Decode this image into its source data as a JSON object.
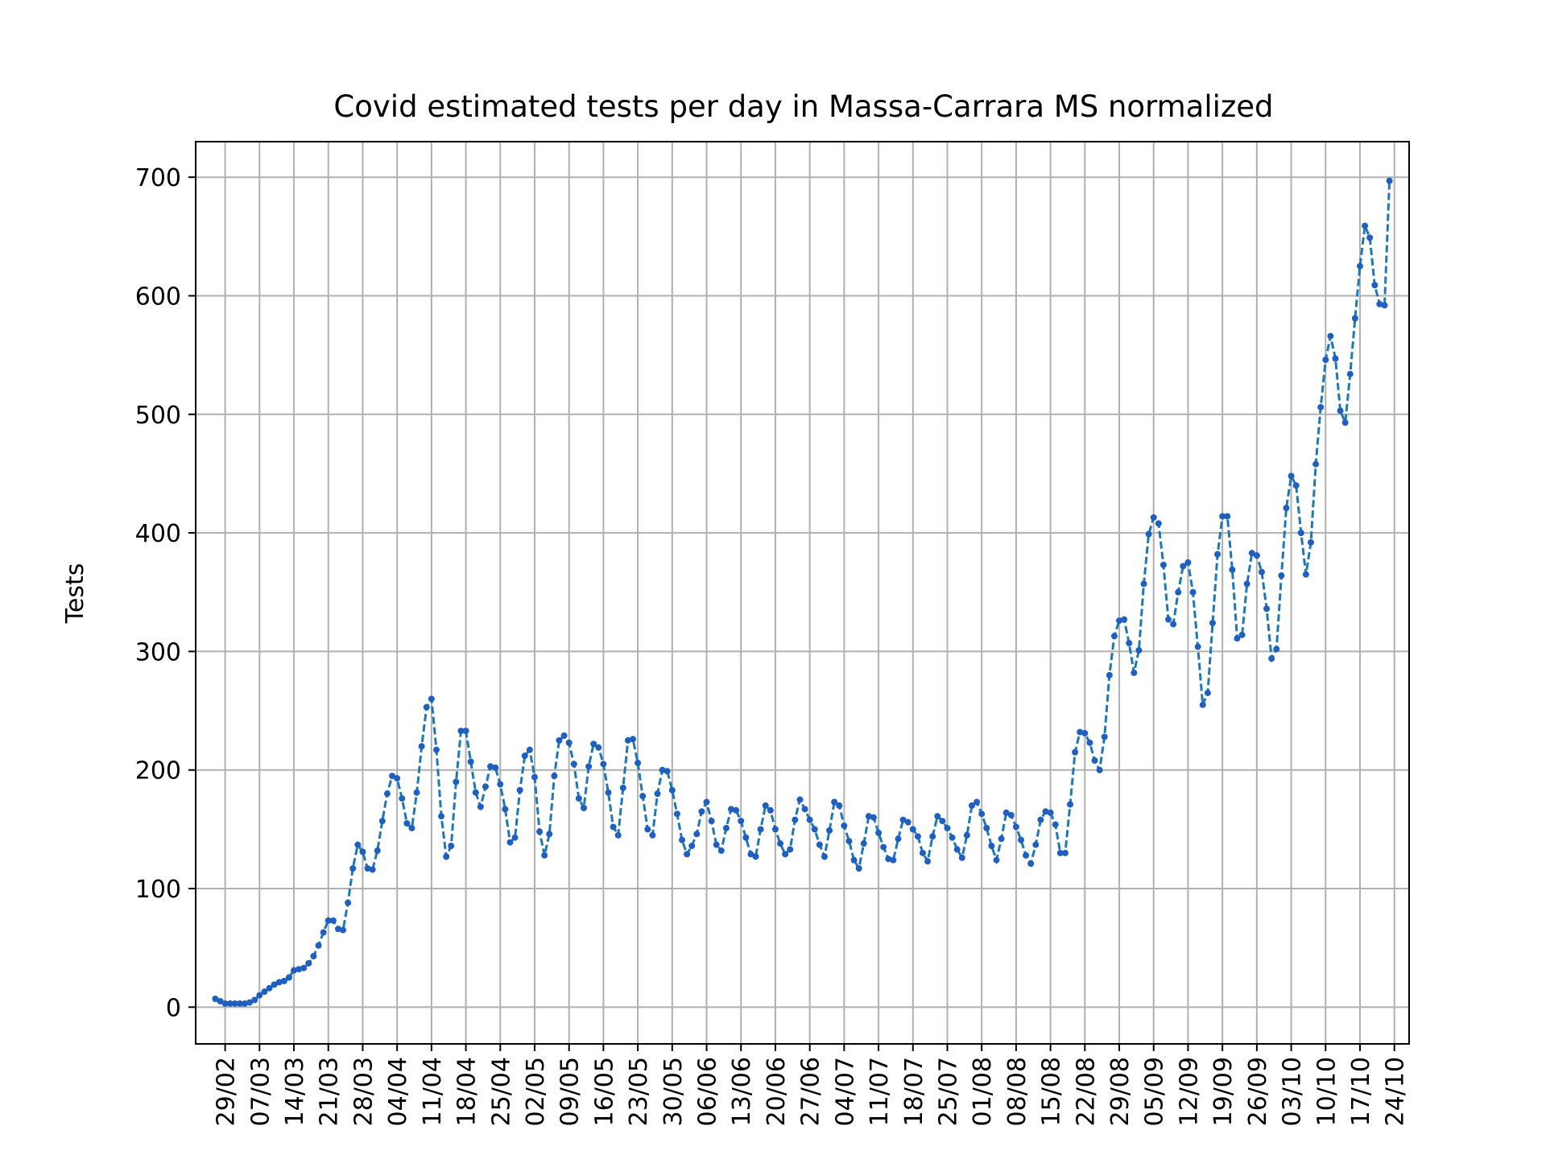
{
  "chart_data": {
    "type": "line",
    "title": "Covid estimated tests per day in Massa-Carrara MS normalized",
    "xlabel": "",
    "ylabel": "Tests",
    "ylim": [
      -31,
      730
    ],
    "yticks": [
      0,
      100,
      200,
      300,
      400,
      500,
      600,
      700
    ],
    "grid": true,
    "x_tick_labels": [
      "29/02",
      "07/03",
      "14/03",
      "21/03",
      "28/03",
      "04/04",
      "11/04",
      "18/04",
      "25/04",
      "02/05",
      "09/05",
      "16/05",
      "23/05",
      "30/05",
      "06/06",
      "13/06",
      "20/06",
      "27/06",
      "04/07",
      "11/07",
      "18/07",
      "25/07",
      "01/08",
      "08/08",
      "15/08",
      "22/08",
      "29/08",
      "05/09",
      "12/09",
      "19/09",
      "26/09",
      "03/10",
      "10/10",
      "17/10",
      "24/10"
    ],
    "x_start_date": "2020-02-27",
    "series": [
      {
        "name": "",
        "color": "#1f77b4",
        "marker_color": "#1f5fbf",
        "line_style": "dashed",
        "values": [
          7,
          5,
          3,
          3,
          3,
          3,
          3,
          4,
          6,
          10,
          13,
          16,
          19,
          21,
          22,
          25,
          31,
          32,
          33,
          37,
          43,
          52,
          63,
          73,
          73,
          66,
          65,
          88,
          117,
          137,
          131,
          117,
          116,
          132,
          157,
          180,
          195,
          193,
          176,
          155,
          151,
          181,
          220,
          253,
          260,
          217,
          161,
          127,
          136,
          190,
          233,
          233,
          207,
          181,
          169,
          186,
          203,
          202,
          188,
          167,
          139,
          143,
          183,
          212,
          217,
          194,
          148,
          128,
          146,
          195,
          225,
          229,
          223,
          205,
          176,
          168,
          203,
          222,
          219,
          205,
          181,
          152,
          145,
          185,
          225,
          226,
          206,
          178,
          150,
          145,
          180,
          200,
          199,
          183,
          163,
          141,
          129,
          136,
          146,
          165,
          173,
          157,
          137,
          132,
          151,
          167,
          166,
          157,
          143,
          129,
          127,
          150,
          170,
          166,
          150,
          138,
          129,
          133,
          158,
          175,
          167,
          158,
          150,
          137,
          127,
          149,
          173,
          170,
          153,
          140,
          124,
          117,
          138,
          161,
          160,
          147,
          135,
          125,
          124,
          142,
          158,
          156,
          150,
          144,
          130,
          123,
          144,
          161,
          157,
          151,
          143,
          133,
          126,
          145,
          170,
          173,
          163,
          151,
          136,
          124,
          142,
          164,
          162,
          152,
          141,
          128,
          121,
          137,
          158,
          165,
          164,
          154,
          130,
          130,
          171,
          215,
          232,
          231,
          223,
          208,
          200,
          228,
          280,
          313,
          326,
          327,
          307,
          282,
          301,
          357,
          399,
          413,
          408,
          373,
          327,
          323,
          350,
          372,
          375,
          350,
          304,
          255,
          265,
          324,
          382,
          414,
          414,
          369,
          311,
          314,
          357,
          383,
          381,
          367,
          336,
          294,
          302,
          364,
          421,
          448,
          440,
          400,
          365,
          392,
          458,
          506,
          546,
          566,
          547,
          503,
          493,
          534,
          581,
          625,
          659,
          649,
          609,
          593,
          592,
          697
        ]
      }
    ]
  }
}
